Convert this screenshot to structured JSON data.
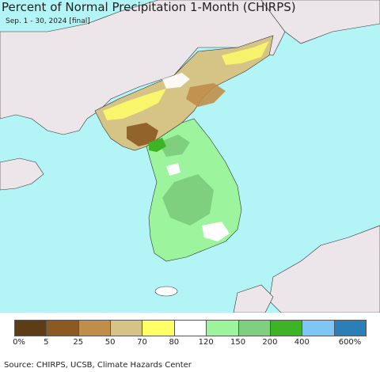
{
  "header": {
    "title": "Percent of Normal Precipitation 1-Month (CHIRPS)",
    "subtitle": "Sep. 1 - 30, 2024 [final]"
  },
  "map": {
    "ocean_color": "#b3f4f6",
    "foreign_land_color": "#ece6ea"
  },
  "legend": {
    "items": [
      {
        "color": "#5c3d15"
      },
      {
        "color": "#8a5a22"
      },
      {
        "color": "#c08e4a"
      },
      {
        "color": "#d6c386"
      },
      {
        "color": "#ffff66"
      },
      {
        "color": "#ffffff"
      },
      {
        "color": "#9cf59c"
      },
      {
        "color": "#7ecf7e"
      },
      {
        "color": "#3cb425"
      },
      {
        "color": "#7ec6f6"
      },
      {
        "color": "#2b7fb8"
      }
    ],
    "tick_labels": [
      "0%",
      "5",
      "25",
      "50",
      "70",
      "80",
      "120",
      "150",
      "200",
      "400",
      "600%"
    ]
  },
  "footer": {
    "source": "Source: CHIRPS, UCSB, Climate Hazards Center"
  }
}
